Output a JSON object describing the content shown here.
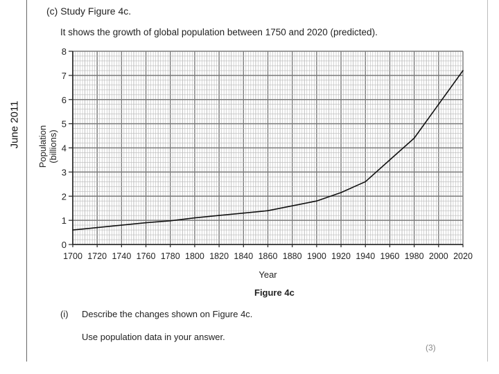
{
  "page": {
    "side_label": "June 2011",
    "heading": "(c) Study Figure 4c.",
    "intro": "It shows the growth of global population between 1750 and 2020 (predicted).",
    "caption": "Figure 4c",
    "question_number": "(i)",
    "question_text": "Describe the changes shown on Figure 4c.",
    "question_sub": "Use population data in your answer.",
    "marks": "(3)"
  },
  "chart_data": {
    "type": "line",
    "title": "",
    "xlabel": "Year",
    "ylabel_lines": [
      "Population",
      "(billions)"
    ],
    "xlim": [
      1700,
      2020
    ],
    "ylim": [
      0,
      8
    ],
    "xticks": [
      1700,
      1720,
      1740,
      1760,
      1780,
      1800,
      1820,
      1840,
      1860,
      1880,
      1900,
      1920,
      1940,
      1960,
      1980,
      2000,
      2020
    ],
    "yticks": [
      0,
      1,
      2,
      3,
      4,
      5,
      6,
      7,
      8
    ],
    "grid": true,
    "series": [
      {
        "x": [
          1700,
          1720,
          1740,
          1760,
          1780,
          1800,
          1820,
          1840,
          1860,
          1880,
          1900,
          1920,
          1940,
          1960,
          1980,
          2000,
          2020
        ],
        "y": [
          0.6,
          0.7,
          0.8,
          0.9,
          0.98,
          1.1,
          1.2,
          1.3,
          1.4,
          1.6,
          1.8,
          2.15,
          2.6,
          3.5,
          4.4,
          5.8,
          7.2
        ]
      }
    ],
    "colors": {
      "line": "#111111",
      "grid_major": "#7a7a7a",
      "grid_minor": "#b8b8b8",
      "axis": "#222222"
    }
  }
}
